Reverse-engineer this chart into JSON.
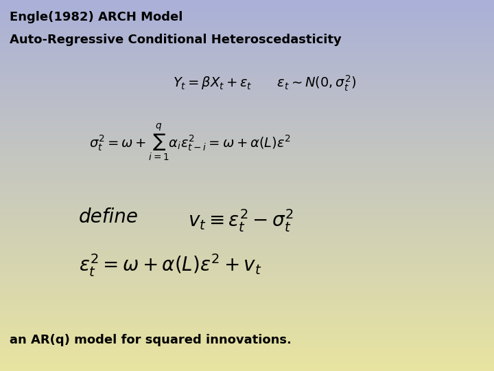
{
  "title_line1": "Engle(1982) ARCH Model",
  "title_line2": "Auto-Regressive Conditional Heteroscedasticity",
  "eq1": "$Y_t = \\beta X_t + \\varepsilon_t \\qquad \\varepsilon_t \\sim N(0, \\sigma_t^2)$",
  "eq2": "$\\sigma_t^2 = \\omega + \\sum_{i=1}^{q} \\alpha_i \\varepsilon^2_{t-i} = \\omega + \\alpha(L)\\varepsilon^2$",
  "eq3_define": "define",
  "eq3": "$v_t \\equiv \\varepsilon_t^2 - \\sigma_t^2$",
  "eq4": "$\\varepsilon_t^2 = \\omega + \\alpha(L)\\varepsilon^2 + v_t$",
  "footer": "an AR(q) model for squared innovations.",
  "bg_color_top": "#aab0d8",
  "bg_color_bottom": "#e8e4a0",
  "text_color": "#000000",
  "title_fontsize": 13,
  "eq_fontsize": 16,
  "footer_fontsize": 13
}
